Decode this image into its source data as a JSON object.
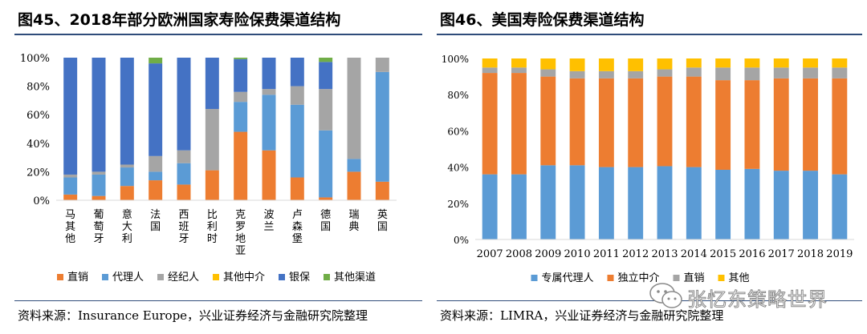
{
  "left": {
    "title": "图45、2018年部分欧洲国家寿险保费渠道结构",
    "source": "资料来源：Insurance Europe，兴业证券经济与金融研究院整理"
  },
  "right": {
    "title": "图46、美国寿险保费渠道结构",
    "source": "资料来源：LIMRA，兴业证券经济与金融研究院整理"
  },
  "watermark": {
    "text": "张忆东策略世界"
  },
  "chart_data": [
    {
      "type": "bar",
      "stacked": true,
      "title": "图45、2018年部分欧洲国家寿险保费渠道结构",
      "categories": [
        "马其他",
        "葡萄牙",
        "意大利",
        "法国",
        "西班牙",
        "比利时",
        "克罗地亚",
        "波兰",
        "卢森堡",
        "德国",
        "瑞典",
        "英国"
      ],
      "ylim": [
        0,
        100
      ],
      "yticks": [
        "0%",
        "20%",
        "40%",
        "60%",
        "80%",
        "100%"
      ],
      "legend_position": "bottom",
      "series": [
        {
          "name": "直销",
          "color": "#ED7D31",
          "values": [
            4,
            3,
            10,
            14,
            11,
            21,
            48,
            35,
            16,
            2,
            20,
            13
          ]
        },
        {
          "name": "代理人",
          "color": "#5B9BD5",
          "values": [
            12,
            15,
            13,
            6,
            15,
            0,
            21,
            39,
            51,
            47,
            9,
            77
          ]
        },
        {
          "name": "经纪人",
          "color": "#A5A5A5",
          "values": [
            2,
            2,
            2,
            11,
            9,
            43,
            7,
            4,
            13,
            29,
            71,
            10
          ]
        },
        {
          "name": "其他中介",
          "color": "#FFC000",
          "values": [
            0,
            0,
            0,
            0,
            0,
            0,
            0,
            0,
            0,
            0,
            0,
            0
          ]
        },
        {
          "name": "银保",
          "color": "#4472C4",
          "values": [
            82,
            80,
            75,
            65,
            65,
            36,
            23,
            22,
            20,
            19,
            0,
            0
          ]
        },
        {
          "name": "其他渠道",
          "color": "#70AD47",
          "values": [
            0,
            0,
            0,
            4,
            0,
            0,
            1,
            0,
            0,
            3,
            0,
            0
          ]
        }
      ]
    },
    {
      "type": "bar",
      "stacked": true,
      "title": "图46、美国寿险保费渠道结构",
      "categories": [
        "2007",
        "2008",
        "2009",
        "2010",
        "2011",
        "2012",
        "2013",
        "2014",
        "2015",
        "2016",
        "2017",
        "2018",
        "2019"
      ],
      "ylim": [
        0,
        100
      ],
      "yticks": [
        "0%",
        "20%",
        "40%",
        "60%",
        "80%",
        "100%"
      ],
      "legend_position": "bottom",
      "series": [
        {
          "name": "专属代理人",
          "color": "#5B9BD5",
          "values": [
            36,
            36,
            41,
            41,
            40,
            40,
            40.5,
            40,
            38.5,
            39,
            38,
            38,
            36
          ]
        },
        {
          "name": "独立中介",
          "color": "#ED7D31",
          "values": [
            56,
            56,
            49,
            48,
            49,
            49,
            49.5,
            50,
            49.5,
            49,
            51,
            51,
            53
          ]
        },
        {
          "name": "直销",
          "color": "#A5A5A5",
          "values": [
            3,
            3,
            4,
            4,
            4,
            4,
            4,
            5,
            7,
            7,
            6,
            6,
            6
          ]
        },
        {
          "name": "其他",
          "color": "#FFC000",
          "values": [
            5,
            5,
            6,
            7,
            7,
            7,
            6,
            5,
            5,
            5,
            5,
            5,
            5
          ]
        }
      ]
    }
  ]
}
